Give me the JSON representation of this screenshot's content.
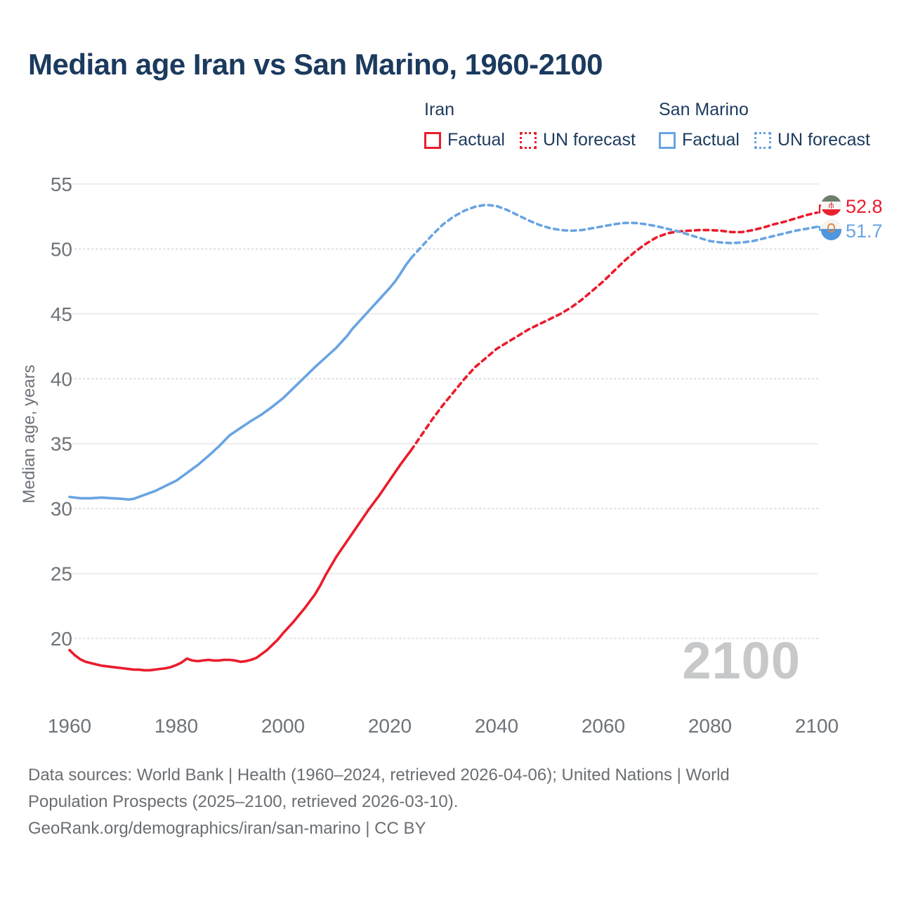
{
  "chart_data": {
    "type": "line",
    "title": "Median age Iran vs San Marino, 1960-2100",
    "xlabel": "",
    "ylabel": "Median age, years",
    "xlim": [
      1960,
      2100
    ],
    "ylim": [
      17,
      56
    ],
    "x_ticks": [
      1960,
      1980,
      2000,
      2020,
      2040,
      2060,
      2080,
      2100
    ],
    "y_ticks": [
      20,
      25,
      30,
      35,
      40,
      45,
      50,
      55
    ],
    "grid": "horizontal only, alternating solid and dotted",
    "legend_position": "top",
    "watermark": "2100",
    "legend": {
      "groups": [
        {
          "name": "Iran",
          "color": "#ea1c2c",
          "items": [
            {
              "label": "Factual",
              "swatch": "solid"
            },
            {
              "label": "UN forecast",
              "swatch": "dotted"
            }
          ]
        },
        {
          "name": "San Marino",
          "color": "#68a4e2",
          "items": [
            {
              "label": "Factual",
              "swatch": "solid"
            },
            {
              "label": "UN forecast",
              "swatch": "dotted"
            }
          ]
        }
      ]
    },
    "end_labels": [
      {
        "series": "Iran",
        "text": "52.8",
        "color": "#ea1c2c",
        "flag": "iran"
      },
      {
        "series": "San Marino",
        "text": "51.7",
        "color": "#68a4e2",
        "flag": "san-marino"
      }
    ],
    "series": [
      {
        "name": "Iran factual",
        "color": "#ea1c2c",
        "dash": false,
        "points": [
          [
            1960,
            19.1
          ],
          [
            1961,
            18.7
          ],
          [
            1962,
            18.4
          ],
          [
            1963,
            18.2
          ],
          [
            1964,
            18.1
          ],
          [
            1965,
            18.0
          ],
          [
            1966,
            17.9
          ],
          [
            1967,
            17.85
          ],
          [
            1968,
            17.8
          ],
          [
            1969,
            17.75
          ],
          [
            1970,
            17.7
          ],
          [
            1971,
            17.65
          ],
          [
            1972,
            17.6
          ],
          [
            1973,
            17.6
          ],
          [
            1974,
            17.55
          ],
          [
            1975,
            17.55
          ],
          [
            1976,
            17.6
          ],
          [
            1977,
            17.65
          ],
          [
            1978,
            17.7
          ],
          [
            1979,
            17.8
          ],
          [
            1980,
            17.95
          ],
          [
            1981,
            18.15
          ],
          [
            1982,
            18.45
          ],
          [
            1983,
            18.3
          ],
          [
            1984,
            18.25
          ],
          [
            1985,
            18.3
          ],
          [
            1986,
            18.35
          ],
          [
            1987,
            18.3
          ],
          [
            1988,
            18.3
          ],
          [
            1989,
            18.35
          ],
          [
            1990,
            18.35
          ],
          [
            1991,
            18.3
          ],
          [
            1992,
            18.2
          ],
          [
            1993,
            18.25
          ],
          [
            1994,
            18.35
          ],
          [
            1995,
            18.5
          ],
          [
            1996,
            18.8
          ],
          [
            1997,
            19.1
          ],
          [
            1998,
            19.5
          ],
          [
            1999,
            19.9
          ],
          [
            2000,
            20.4
          ],
          [
            2001,
            20.85
          ],
          [
            2002,
            21.3
          ],
          [
            2003,
            21.8
          ],
          [
            2004,
            22.3
          ],
          [
            2005,
            22.85
          ],
          [
            2006,
            23.4
          ],
          [
            2007,
            24.1
          ],
          [
            2008,
            24.9
          ],
          [
            2009,
            25.6
          ],
          [
            2010,
            26.3
          ],
          [
            2011,
            26.9
          ],
          [
            2012,
            27.5
          ],
          [
            2013,
            28.1
          ],
          [
            2014,
            28.7
          ],
          [
            2015,
            29.3
          ],
          [
            2016,
            29.9
          ],
          [
            2017,
            30.45
          ],
          [
            2018,
            31.0
          ],
          [
            2019,
            31.6
          ],
          [
            2020,
            32.2
          ],
          [
            2021,
            32.8
          ],
          [
            2022,
            33.4
          ],
          [
            2023,
            33.95
          ],
          [
            2024,
            34.5
          ]
        ]
      },
      {
        "name": "Iran UN forecast",
        "color": "#ea1c2c",
        "dash": true,
        "points": [
          [
            2024,
            34.5
          ],
          [
            2026,
            35.7
          ],
          [
            2028,
            36.9
          ],
          [
            2030,
            38.0
          ],
          [
            2032,
            39.0
          ],
          [
            2034,
            40.0
          ],
          [
            2036,
            40.9
          ],
          [
            2038,
            41.6
          ],
          [
            2040,
            42.3
          ],
          [
            2042,
            42.8
          ],
          [
            2044,
            43.3
          ],
          [
            2046,
            43.8
          ],
          [
            2048,
            44.2
          ],
          [
            2050,
            44.6
          ],
          [
            2052,
            45.0
          ],
          [
            2054,
            45.5
          ],
          [
            2056,
            46.1
          ],
          [
            2058,
            46.8
          ],
          [
            2060,
            47.5
          ],
          [
            2062,
            48.3
          ],
          [
            2064,
            49.1
          ],
          [
            2066,
            49.8
          ],
          [
            2068,
            50.4
          ],
          [
            2070,
            50.9
          ],
          [
            2072,
            51.2
          ],
          [
            2074,
            51.35
          ],
          [
            2076,
            51.4
          ],
          [
            2078,
            51.45
          ],
          [
            2080,
            51.45
          ],
          [
            2082,
            51.4
          ],
          [
            2084,
            51.3
          ],
          [
            2086,
            51.3
          ],
          [
            2088,
            51.45
          ],
          [
            2090,
            51.65
          ],
          [
            2092,
            51.9
          ],
          [
            2094,
            52.1
          ],
          [
            2096,
            52.35
          ],
          [
            2098,
            52.6
          ],
          [
            2100,
            52.8
          ]
        ]
      },
      {
        "name": "San Marino factual",
        "color": "#68a4e2",
        "dash": false,
        "points": [
          [
            1960,
            30.9
          ],
          [
            1962,
            30.8
          ],
          [
            1964,
            30.8
          ],
          [
            1966,
            30.85
          ],
          [
            1968,
            30.8
          ],
          [
            1970,
            30.75
          ],
          [
            1971,
            30.7
          ],
          [
            1972,
            30.75
          ],
          [
            1974,
            31.05
          ],
          [
            1976,
            31.35
          ],
          [
            1978,
            31.75
          ],
          [
            1980,
            32.15
          ],
          [
            1982,
            32.75
          ],
          [
            1984,
            33.35
          ],
          [
            1986,
            34.05
          ],
          [
            1988,
            34.8
          ],
          [
            1990,
            35.65
          ],
          [
            1992,
            36.2
          ],
          [
            1994,
            36.75
          ],
          [
            1996,
            37.25
          ],
          [
            1998,
            37.85
          ],
          [
            2000,
            38.5
          ],
          [
            2002,
            39.3
          ],
          [
            2004,
            40.1
          ],
          [
            2006,
            40.9
          ],
          [
            2008,
            41.65
          ],
          [
            2010,
            42.4
          ],
          [
            2012,
            43.3
          ],
          [
            2013,
            43.85
          ],
          [
            2014,
            44.3
          ],
          [
            2016,
            45.2
          ],
          [
            2018,
            46.1
          ],
          [
            2020,
            47.0
          ],
          [
            2021,
            47.5
          ],
          [
            2022,
            48.1
          ],
          [
            2023,
            48.75
          ],
          [
            2024,
            49.3
          ]
        ]
      },
      {
        "name": "San Marino UN forecast",
        "color": "#68a4e2",
        "dash": true,
        "points": [
          [
            2024,
            49.3
          ],
          [
            2026,
            50.2
          ],
          [
            2028,
            51.1
          ],
          [
            2030,
            51.9
          ],
          [
            2032,
            52.5
          ],
          [
            2034,
            52.95
          ],
          [
            2036,
            53.25
          ],
          [
            2038,
            53.4
          ],
          [
            2040,
            53.3
          ],
          [
            2042,
            53.0
          ],
          [
            2044,
            52.6
          ],
          [
            2046,
            52.2
          ],
          [
            2048,
            51.85
          ],
          [
            2050,
            51.6
          ],
          [
            2052,
            51.45
          ],
          [
            2054,
            51.4
          ],
          [
            2056,
            51.45
          ],
          [
            2058,
            51.6
          ],
          [
            2060,
            51.75
          ],
          [
            2062,
            51.9
          ],
          [
            2064,
            52.0
          ],
          [
            2066,
            52.0
          ],
          [
            2068,
            51.9
          ],
          [
            2070,
            51.75
          ],
          [
            2072,
            51.55
          ],
          [
            2074,
            51.35
          ],
          [
            2076,
            51.1
          ],
          [
            2078,
            50.85
          ],
          [
            2080,
            50.6
          ],
          [
            2082,
            50.5
          ],
          [
            2084,
            50.45
          ],
          [
            2086,
            50.5
          ],
          [
            2088,
            50.6
          ],
          [
            2090,
            50.8
          ],
          [
            2092,
            51.0
          ],
          [
            2094,
            51.2
          ],
          [
            2096,
            51.4
          ],
          [
            2098,
            51.55
          ],
          [
            2100,
            51.7
          ]
        ]
      }
    ]
  },
  "footer": {
    "line1": "Data sources: World Bank | Health (1960–2024, retrieved 2026-04-06); United Nations | World",
    "line2": "Population Prospects (2025–2100, retrieved 2026-03-10).",
    "line3": "GeoRank.org/demographics/iran/san-marino | CC BY"
  }
}
